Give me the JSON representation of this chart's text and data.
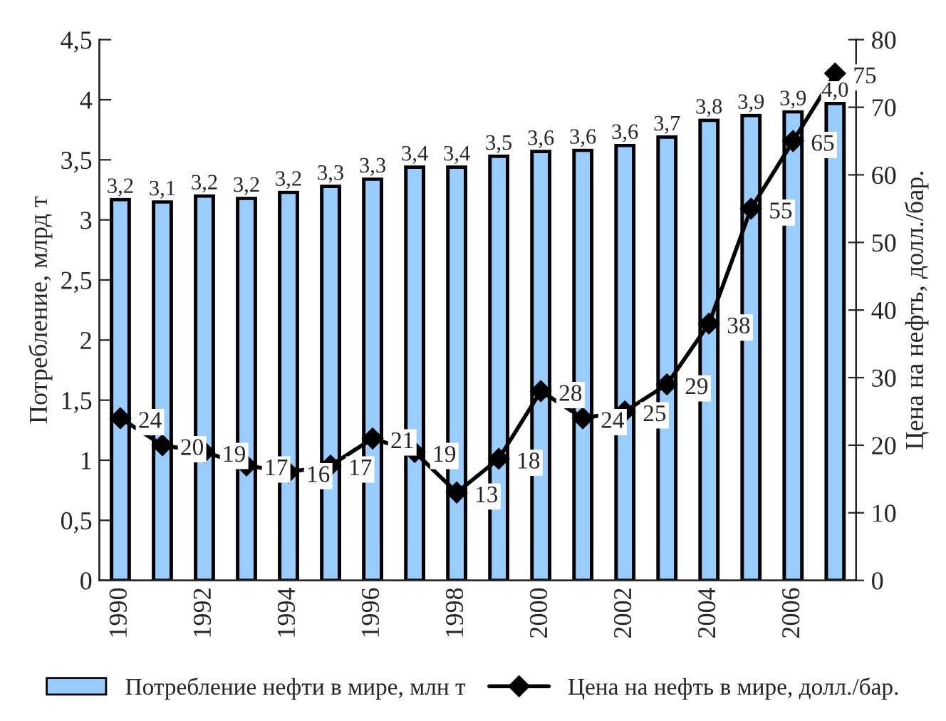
{
  "chart_data": {
    "type": "bar",
    "categories": [
      "1990",
      null,
      "1992",
      null,
      "1994",
      null,
      "1996",
      null,
      "1998",
      null,
      "2000",
      null,
      "2002",
      null,
      "2004",
      null,
      "2006",
      null
    ],
    "ylabel": "Потребление, млрд т",
    "y2label": "Цена на нефть, долл./бар.",
    "series": [
      {
        "name": "Потребление нефти в мире, млн т",
        "color": "#99ccff",
        "values": [
          3.17,
          3.15,
          3.2,
          3.18,
          3.23,
          3.28,
          3.34,
          3.44,
          3.44,
          3.53,
          3.57,
          3.58,
          3.62,
          3.69,
          3.83,
          3.87,
          3.9,
          3.97
        ],
        "value_labels": [
          "3,2",
          "3,1",
          "3,2",
          "3,2",
          "3,2",
          "3,3",
          "3,3",
          "3,4",
          "3,4",
          "3,5",
          "3,6",
          "3,6",
          "3,6",
          "3,7",
          "3,8",
          "3,9",
          "3,9",
          "4,0"
        ]
      },
      {
        "name": "Цена на нефть в мире, долл./бар.",
        "type": "line",
        "axis": "y2",
        "color": "#000000",
        "marker": "diamond",
        "values": [
          24,
          20,
          19,
          17,
          16,
          17,
          21,
          19,
          13,
          18,
          28,
          24,
          25,
          29,
          38,
          55,
          65,
          75
        ],
        "data_labels": true
      }
    ],
    "ylim": [
      0,
      4.5
    ],
    "yticks": [
      0,
      {
        "value": 0.5,
        "label": "0,5"
      },
      1,
      {
        "value": 1.5,
        "label": "1,5"
      },
      2,
      {
        "value": 2.5,
        "label": "2,5"
      },
      3,
      {
        "value": 3.5,
        "label": "3,5"
      },
      4,
      {
        "value": 4.5,
        "label": "4,5"
      }
    ],
    "y2lim": [
      0,
      80
    ],
    "y2ticks": [
      0,
      10,
      20,
      30,
      40,
      50,
      60,
      70,
      80
    ],
    "grid": false,
    "legend": "bottom"
  }
}
